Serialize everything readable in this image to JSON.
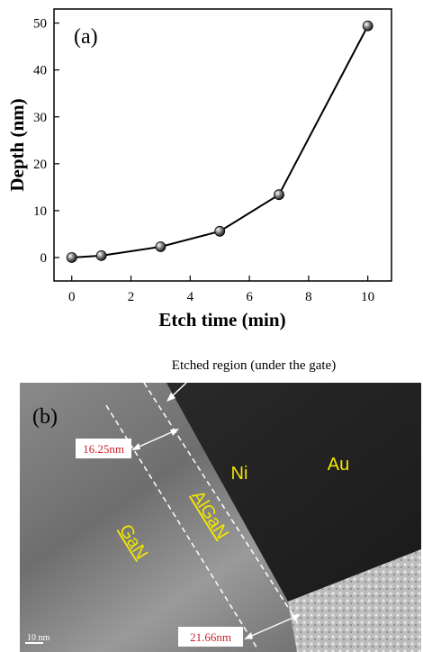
{
  "chart_data": {
    "type": "line",
    "annotation": "(a)",
    "x_label": "Etch time (min)",
    "y_label": "Depth (nm)",
    "x": [
      0,
      1,
      3,
      5,
      7,
      10
    ],
    "series": [
      {
        "color": "#000000",
        "values": [
          0,
          0.4,
          2.3,
          5.6,
          13.4,
          49.4
        ]
      }
    ],
    "xlim": [
      -0.6,
      10.8
    ],
    "ylim": [
      -5,
      53
    ],
    "xticks": [
      0,
      2,
      4,
      6,
      8,
      10
    ],
    "yticks": [
      0,
      10,
      20,
      30,
      40,
      50
    ]
  },
  "panel_b": {
    "caption": "Etched region (under the gate)",
    "label": "(b)",
    "width_top": "16.25nm",
    "width_bottom": "21.66nm",
    "regions": [
      "Ni",
      "Au",
      "AlGaN",
      "GaN"
    ],
    "scale_bar": "10 nm"
  }
}
